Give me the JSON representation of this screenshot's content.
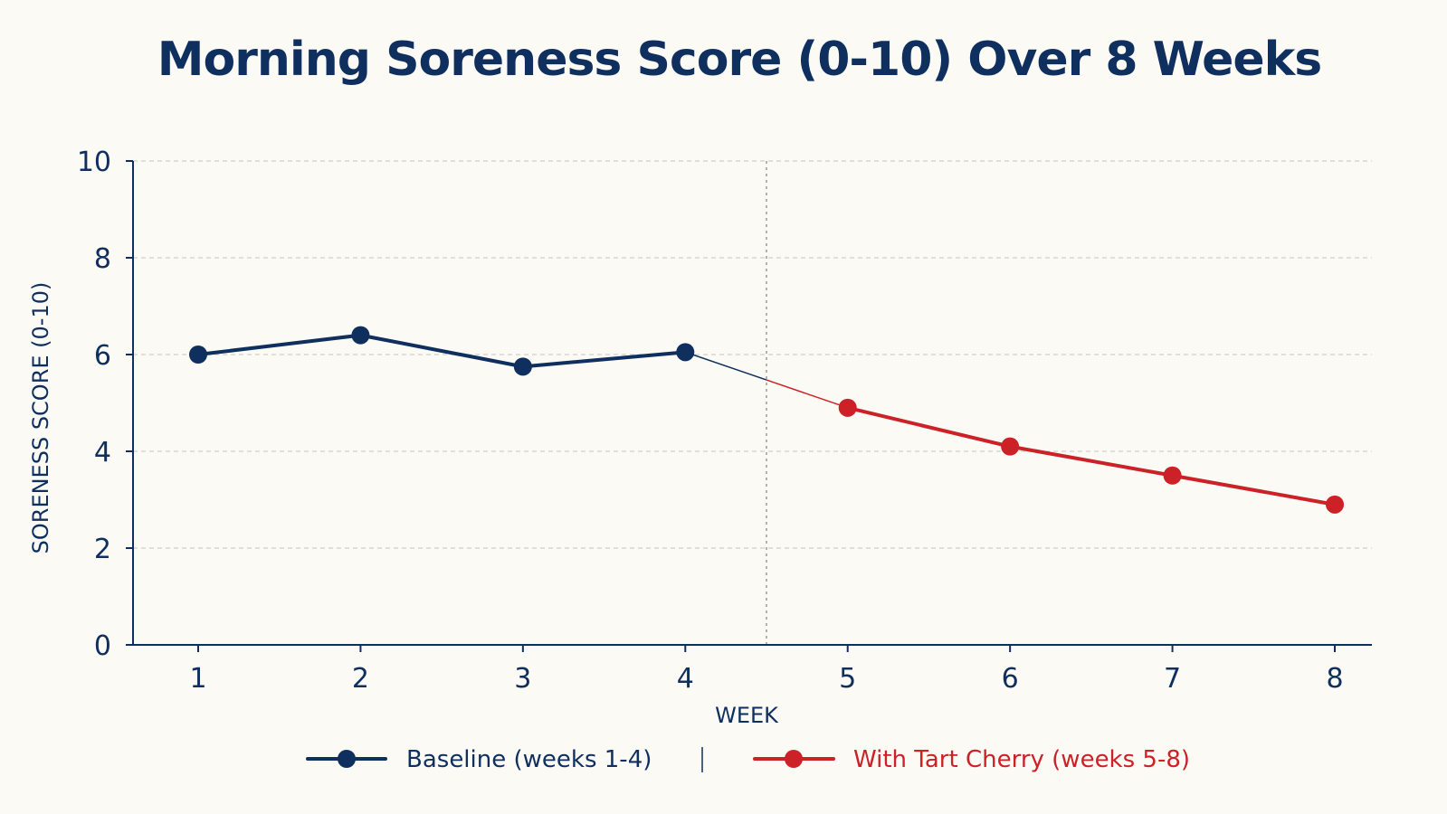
{
  "chart_data": {
    "type": "line",
    "title": "Morning Soreness Score (0-10) Over 8 Weeks",
    "xlabel": "WEEK",
    "ylabel": "SORENESS SCORE (0-10)",
    "x": [
      1,
      2,
      3,
      4,
      5,
      6,
      7,
      8
    ],
    "ylim": [
      0,
      10
    ],
    "yticks": [
      0,
      2,
      4,
      6,
      8,
      10
    ],
    "grid": true,
    "divider_at_x": 4.5,
    "legend_position": "bottom",
    "series": [
      {
        "name": "Baseline (weeks 1-4)",
        "color": "#0f2f5f",
        "x": [
          1,
          2,
          3,
          4
        ],
        "values": [
          6.0,
          6.4,
          5.75,
          6.05
        ]
      },
      {
        "name": "With Tart Cherry (weeks 5-8)",
        "color": "#cc2127",
        "x": [
          5,
          6,
          7,
          8
        ],
        "values": [
          4.9,
          4.1,
          3.5,
          2.9
        ]
      }
    ]
  }
}
